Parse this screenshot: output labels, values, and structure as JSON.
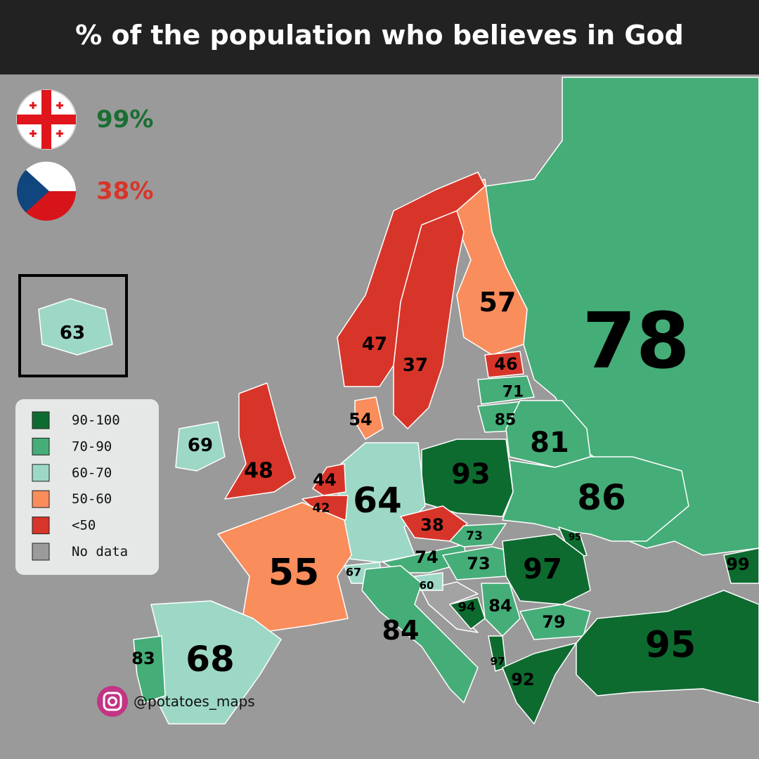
{
  "title": "% of the population who believes in God",
  "highlights": [
    {
      "text": "99%",
      "color": "#1a6e33"
    },
    {
      "text": "38%",
      "color": "#d8352a"
    }
  ],
  "legend": [
    {
      "label": "90-100",
      "color": "#0e6b30"
    },
    {
      "label": "70-90",
      "color": "#45ad78"
    },
    {
      "label": "60-70",
      "color": "#9dd8c6"
    },
    {
      "label": "50-60",
      "color": "#f98d5c"
    },
    {
      "label": "<50",
      "color": "#d8352a"
    },
    {
      "label": "No data",
      "color": "#9b9b9b"
    }
  ],
  "regions": [
    {
      "value": 78,
      "color": "#45ad78"
    },
    {
      "value": 57,
      "color": "#f98d5c"
    },
    {
      "value": 47,
      "color": "#d8352a"
    },
    {
      "value": 37,
      "color": "#d8352a"
    },
    {
      "value": 46,
      "color": "#d8352a"
    },
    {
      "value": 71,
      "color": "#45ad78"
    },
    {
      "value": 85,
      "color": "#45ad78"
    },
    {
      "value": 81,
      "color": "#45ad78"
    },
    {
      "value": 93,
      "color": "#0e6b30"
    },
    {
      "value": 86,
      "color": "#45ad78"
    },
    {
      "value": 64,
      "color": "#9dd8c6"
    },
    {
      "value": 54,
      "color": "#f98d5c"
    },
    {
      "value": 44,
      "color": "#d8352a"
    },
    {
      "value": 42,
      "color": "#d8352a"
    },
    {
      "value": 38,
      "color": "#d8352a"
    },
    {
      "value": 55,
      "color": "#f98d5c"
    },
    {
      "value": 67,
      "color": "#9dd8c6"
    },
    {
      "value": 74,
      "color": "#45ad78"
    },
    {
      "value": 73,
      "color": "#45ad78"
    },
    {
      "value": 73,
      "color": "#45ad78"
    },
    {
      "value": 95,
      "color": "#0e6b30"
    },
    {
      "value": 97,
      "color": "#0e6b30"
    },
    {
      "value": 60,
      "color": "#9dd8c6"
    },
    {
      "value": 94,
      "color": "#0e6b30"
    },
    {
      "value": 84,
      "color": "#45ad78"
    },
    {
      "value": 79,
      "color": "#45ad78"
    },
    {
      "value": 84,
      "color": "#45ad78"
    },
    {
      "value": 68,
      "color": "#9dd8c6"
    },
    {
      "value": 83,
      "color": "#45ad78"
    },
    {
      "value": 97,
      "color": "#0e6b30"
    },
    {
      "value": 92,
      "color": "#0e6b30"
    },
    {
      "value": 95,
      "color": "#0e6b30"
    },
    {
      "value": 99,
      "color": "#0e6b30"
    },
    {
      "value": 48,
      "color": "#d8352a"
    },
    {
      "value": 69,
      "color": "#9dd8c6"
    },
    {
      "value": 63,
      "color": "#9dd8c6"
    }
  ],
  "credit": "@potatoes_maps"
}
